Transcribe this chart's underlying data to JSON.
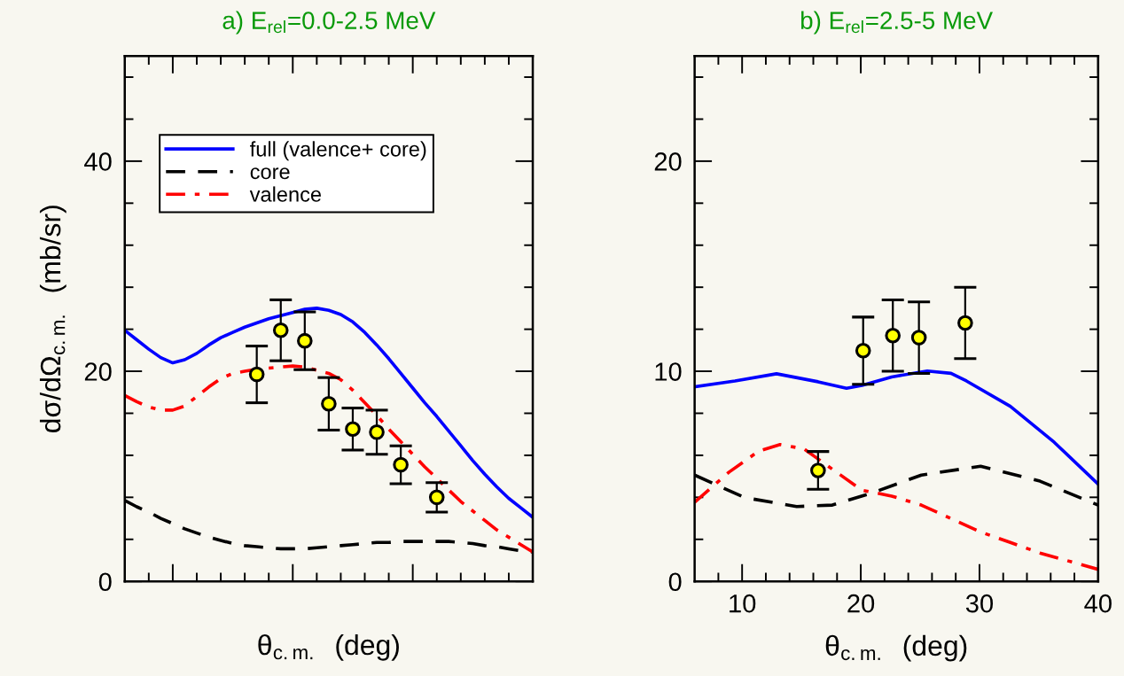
{
  "chart_data": [
    {
      "type": "line",
      "title": "a) E$_{rel}$=0.0-2.5 MeV",
      "xlabel": "θ$_{c.m.}$  (deg)",
      "ylabel": "dσ/dΩ$_{c.m.}$  (mb/sr)",
      "categories": [
        null,
        null,
        null,
        null,
        null,
        null,
        null,
        null,
        null,
        null,
        null,
        null,
        null,
        null,
        null,
        null,
        null,
        null,
        null,
        null,
        null,
        null,
        null,
        null,
        null,
        null,
        null,
        null,
        null,
        null,
        null,
        null,
        null,
        null,
        null
      ],
      "ylim": [
        0,
        50
      ],
      "yticks": [
        0,
        {
          "value": 4,
          "label": null
        },
        {
          "value": 8,
          "label": null
        },
        {
          "value": 12,
          "label": null
        },
        {
          "value": 16,
          "label": null
        },
        20,
        {
          "value": 24,
          "label": null
        },
        {
          "value": 28,
          "label": null
        },
        {
          "value": 32,
          "label": null
        },
        {
          "value": 36,
          "label": null
        },
        40,
        {
          "value": 44,
          "label": null
        },
        {
          "value": 48,
          "label": null
        }
      ],
      "grid": false,
      "legend": "top left",
      "marker": "none",
      "series": [
        {
          "name": "full (valence+ core)",
          "line_style": "solid",
          "color": "#0000ff",
          "values": [
            23.9,
            23.0,
            22.1,
            21.3,
            20.8,
            21.1,
            21.7,
            22.5,
            23.2,
            23.7,
            24.2,
            24.6,
            25.0,
            25.3,
            25.6,
            25.9,
            26.0,
            25.8,
            25.4,
            24.7,
            23.7,
            22.5,
            21.2,
            19.8,
            18.4,
            17.0,
            15.7,
            14.3,
            12.9,
            11.5,
            10.2,
            9.0,
            7.9,
            7.0,
            6.1
          ]
        },
        {
          "name": "core",
          "line_style": "dashed",
          "color": "#000000",
          "values": [
            7.7,
            7.1,
            6.6,
            6.0,
            5.5,
            5.0,
            4.6,
            4.2,
            3.9,
            3.6,
            3.4,
            3.3,
            3.2,
            3.1,
            3.1,
            3.1,
            3.2,
            3.3,
            3.4,
            3.5,
            3.6,
            3.7,
            3.7,
            3.8,
            3.8,
            3.8,
            3.8,
            3.8,
            3.7,
            3.6,
            3.4,
            3.3,
            3.1,
            2.9,
            2.8
          ]
        },
        {
          "name": "valence",
          "line_style": "dashdot",
          "color": "#ff0000",
          "values": [
            17.7,
            17.1,
            16.6,
            16.3,
            16.3,
            16.7,
            17.6,
            18.5,
            19.3,
            19.8,
            20.0,
            20.2,
            20.3,
            20.4,
            20.5,
            20.4,
            20.1,
            19.8,
            19.2,
            18.2,
            17.0,
            15.8,
            14.5,
            13.3,
            12.1,
            10.9,
            9.8,
            8.7,
            7.6,
            6.7,
            5.8,
            4.9,
            4.2,
            3.5,
            2.8
          ]
        },
        {
          "type": "scatter",
          "marker": "circle",
          "color": "#ffff00",
          "values": [
            null,
            null,
            null,
            null,
            null,
            null,
            null,
            null,
            null,
            null,
            null,
            19.7,
            null,
            23.9,
            null,
            22.9,
            null,
            16.9,
            null,
            14.5,
            null,
            14.2,
            null,
            11.1,
            null,
            null,
            8.0,
            null,
            null,
            null,
            null,
            null,
            null,
            null,
            null
          ],
          "errors": [
            null,
            null,
            null,
            null,
            null,
            null,
            null,
            null,
            null,
            null,
            null,
            2.7,
            null,
            2.9,
            null,
            2.75,
            null,
            2.5,
            null,
            2.0,
            null,
            2.1,
            null,
            1.8,
            null,
            null,
            1.4,
            null,
            null,
            null,
            null,
            null,
            null,
            null,
            null
          ]
        }
      ]
    },
    {
      "type": "line",
      "title": "b) E$_{rel}$=2.5-5 MeV",
      "xlabel": "θ$_{c.m.}$  (deg)",
      "xlim": [
        6,
        40
      ],
      "ylim": [
        0,
        25
      ],
      "xticks": [
        {
          "value": 8,
          "label": null
        },
        10,
        {
          "value": 12,
          "label": null
        },
        {
          "value": 14,
          "label": null
        },
        {
          "value": 16,
          "label": null
        },
        {
          "value": 18,
          "label": null
        },
        20,
        {
          "value": 22,
          "label": null
        },
        {
          "value": 24,
          "label": null
        },
        {
          "value": 26,
          "label": null
        },
        {
          "value": 28,
          "label": null
        },
        30,
        {
          "value": 32,
          "label": null
        },
        {
          "value": 34,
          "label": null
        },
        {
          "value": 36,
          "label": null
        },
        {
          "value": 38,
          "label": null
        },
        40
      ],
      "yticks": [
        0,
        {
          "value": 2,
          "label": null
        },
        {
          "value": 4,
          "label": null
        },
        {
          "value": 6,
          "label": null
        },
        {
          "value": 8,
          "label": null
        },
        10,
        {
          "value": 12,
          "label": null
        },
        {
          "value": 14,
          "label": null
        },
        {
          "value": 16,
          "label": null
        },
        {
          "value": 18,
          "label": null
        },
        20,
        {
          "value": 22,
          "label": null
        },
        {
          "value": 24,
          "label": null
        }
      ],
      "grid": false,
      "legend": false,
      "marker": "none",
      "series": [
        {
          "line_style": "solid",
          "color": "#0000ff",
          "x": [
            6,
            9.4,
            12.9,
            16.4,
            18.8,
            20.1,
            22.6,
            25.6,
            27.6,
            28.9,
            32.6,
            36.3,
            40
          ],
          "values": [
            9.26,
            9.54,
            9.88,
            9.5,
            9.19,
            9.33,
            9.73,
            10.01,
            9.9,
            9.54,
            8.33,
            6.62,
            4.63
          ]
        },
        {
          "line_style": "dashed",
          "color": "#000000",
          "x": [
            6,
            10.2,
            14.6,
            17.6,
            20.9,
            25.1,
            30.1,
            35.1,
            40
          ],
          "values": [
            5.06,
            3.99,
            3.56,
            3.63,
            4.2,
            5.06,
            5.48,
            4.77,
            3.63
          ]
        },
        {
          "line_style": "dashdot",
          "color": "#ff0000",
          "x": [
            6,
            8.9,
            11.4,
            13.2,
            15.2,
            17.6,
            20.1,
            22.6,
            25.1,
            27.6,
            30.1,
            32.6,
            35.1,
            40
          ],
          "values": [
            3.77,
            5.2,
            6.2,
            6.51,
            6.31,
            5.34,
            4.34,
            4.06,
            3.63,
            2.99,
            2.35,
            1.85,
            1.35,
            0.57
          ]
        },
        {
          "type": "scatter",
          "marker": "circle",
          "color": "#ffff00",
          "x": [
            16.4,
            20.2,
            22.7,
            24.9,
            28.8
          ],
          "values": [
            5.28,
            10.98,
            11.7,
            11.6,
            12.3
          ],
          "errors": [
            0.9,
            1.6,
            1.7,
            1.7,
            1.7
          ]
        }
      ]
    }
  ]
}
